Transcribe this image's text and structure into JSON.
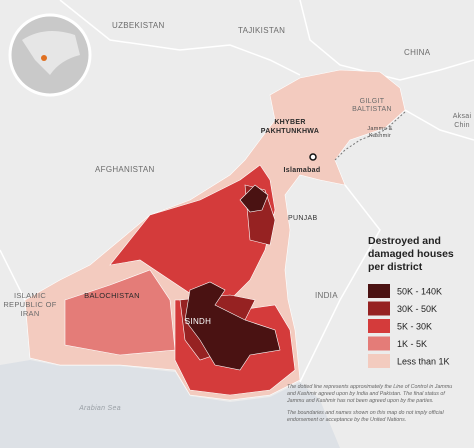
{
  "labels": [
    {
      "lines": [
        "UZBEKISTAN"
      ]
    },
    {
      "lines": [
        "TAJIKISTAN"
      ]
    },
    {
      "lines": [
        "CHINA"
      ]
    },
    {
      "lines": [
        "GILGIT",
        "BALTISTAN"
      ]
    },
    {
      "lines": [
        "KHYBER",
        "PAKHTUNKHWA"
      ]
    },
    {
      "lines": [
        "Jammu &",
        "Kashmir"
      ]
    },
    {
      "lines": [
        "Aksai",
        "Chin"
      ]
    },
    {
      "lines": [
        "Islamabad"
      ]
    },
    {
      "lines": [
        "AFGHANISTAN"
      ]
    },
    {
      "lines": [
        "PUNJAB"
      ]
    },
    {
      "lines": [
        "INDIA"
      ]
    },
    {
      "lines": [
        "BALOCHISTAN"
      ]
    },
    {
      "lines": [
        "ISLAMIC",
        "REPUBLIC OF",
        "IRAN"
      ]
    },
    {
      "lines": [
        "SINDH"
      ]
    },
    {
      "lines": [
        "Arabian Sea"
      ]
    }
  ],
  "legend": {
    "title": [
      "Destroyed and",
      "damaged houses",
      "per district"
    ],
    "items": [
      {
        "label": "50K - 140K",
        "color": "#4a1212"
      },
      {
        "label": "30K - 50K",
        "color": "#962222"
      },
      {
        "label": "5K - 30K",
        "color": "#d43b3b"
      },
      {
        "label": "1K - 5K",
        "color": "#e47c78"
      },
      {
        "label": "Less than 1K",
        "color": "#f3cbbf"
      }
    ]
  },
  "notes": [
    [
      "The dotted line represents approximately the Line of Control in Jammu",
      "and Kashmir agreed upon by India and Pakistan. The final status of",
      "Jammu and Kashmir has not been agreed upon by the parties."
    ],
    [
      "The boundaries and names shown on this map do not imply official",
      "endorsement or acceptance by the United Nations."
    ]
  ]
}
